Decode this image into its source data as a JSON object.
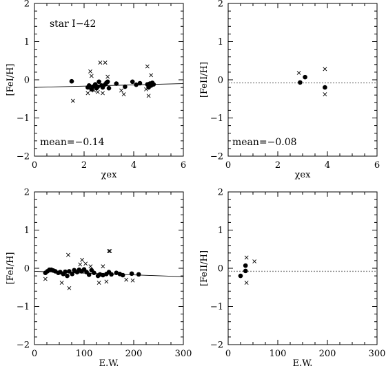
{
  "chart_data": [
    {
      "type": "scatter",
      "panel": "top-left",
      "xlabel": "χex",
      "ylabel": "[FeI/H]",
      "xlim": [
        0,
        6
      ],
      "ylim": [
        -2,
        2
      ],
      "xticks": [
        "0",
        "2",
        "4",
        "6"
      ],
      "yticks": [
        "-2",
        "-1",
        "0",
        "1",
        "2"
      ],
      "annotations": [
        "star I-42",
        "mean=-0.14"
      ],
      "fit_line": {
        "style": "solid",
        "x": [
          0,
          6
        ],
        "y": [
          -0.2,
          -0.1
        ]
      },
      "series": [
        {
          "marker": "filled-circle",
          "points": [
            [
              1.5,
              -0.04
            ],
            [
              2.15,
              -0.2
            ],
            [
              2.2,
              -0.15
            ],
            [
              2.3,
              -0.25
            ],
            [
              2.35,
              -0.18
            ],
            [
              2.45,
              -0.12
            ],
            [
              2.5,
              -0.22
            ],
            [
              2.55,
              -0.18
            ],
            [
              2.6,
              -0.05
            ],
            [
              2.7,
              -0.15
            ],
            [
              2.75,
              -0.2
            ],
            [
              2.85,
              -0.12
            ],
            [
              2.9,
              -0.08
            ],
            [
              2.95,
              -0.05
            ],
            [
              3.0,
              -0.22
            ],
            [
              3.3,
              -0.1
            ],
            [
              3.65,
              -0.18
            ],
            [
              3.95,
              -0.05
            ],
            [
              4.1,
              -0.13
            ],
            [
              4.25,
              -0.09
            ],
            [
              4.55,
              -0.12
            ],
            [
              4.6,
              -0.2
            ],
            [
              4.65,
              -0.1
            ],
            [
              4.7,
              -0.15
            ],
            [
              4.75,
              -0.08
            ],
            [
              4.8,
              -0.12
            ]
          ]
        },
        {
          "marker": "cross",
          "points": [
            [
              1.55,
              -0.55
            ],
            [
              2.15,
              -0.35
            ],
            [
              2.25,
              0.22
            ],
            [
              2.3,
              0.1
            ],
            [
              2.4,
              -0.28
            ],
            [
              2.55,
              -0.32
            ],
            [
              2.65,
              0.45
            ],
            [
              2.75,
              -0.35
            ],
            [
              2.85,
              0.45
            ],
            [
              2.95,
              0.08
            ],
            [
              3.5,
              -0.28
            ],
            [
              3.6,
              -0.38
            ],
            [
              4.5,
              -0.25
            ],
            [
              4.55,
              0.35
            ],
            [
              4.6,
              -0.42
            ],
            [
              4.7,
              0.12
            ]
          ]
        }
      ]
    },
    {
      "type": "scatter",
      "panel": "top-right",
      "xlabel": "χex",
      "ylabel": "[FeII/H]",
      "xlim": [
        0,
        6
      ],
      "ylim": [
        -2,
        2
      ],
      "xticks": [
        "0",
        "2",
        "4",
        "6"
      ],
      "yticks": [
        "-2",
        "-1",
        "0",
        "1",
        "2"
      ],
      "annotations": [
        "mean=-0.08"
      ],
      "fit_line": {
        "style": "dotted",
        "x": [
          0,
          6
        ],
        "y": [
          -0.08,
          -0.08
        ]
      },
      "series": [
        {
          "marker": "filled-circle",
          "points": [
            [
              2.9,
              -0.07
            ],
            [
              3.1,
              0.07
            ],
            [
              3.9,
              -0.2
            ]
          ]
        },
        {
          "marker": "cross",
          "points": [
            [
              2.85,
              0.18
            ],
            [
              3.9,
              0.28
            ],
            [
              3.9,
              -0.38
            ]
          ]
        }
      ]
    },
    {
      "type": "scatter",
      "panel": "bottom-left",
      "xlabel": "E.W.",
      "ylabel": "[FeI/H]",
      "xlim": [
        0,
        300
      ],
      "ylim": [
        -2,
        2
      ],
      "xticks": [
        "0",
        "100",
        "200",
        "300"
      ],
      "yticks": [
        "-2",
        "-1",
        "0",
        "1",
        "2"
      ],
      "annotations": [],
      "fit_line": {
        "style": "solid",
        "x": [
          0,
          300
        ],
        "y": [
          -0.08,
          -0.22
        ]
      },
      "series": [
        {
          "marker": "filled-circle",
          "points": [
            [
              22,
              -0.12
            ],
            [
              26,
              -0.08
            ],
            [
              30,
              -0.04
            ],
            [
              34,
              -0.04
            ],
            [
              38,
              -0.06
            ],
            [
              42,
              -0.08
            ],
            [
              48,
              -0.12
            ],
            [
              52,
              -0.1
            ],
            [
              58,
              -0.15
            ],
            [
              62,
              -0.09
            ],
            [
              66,
              -0.2
            ],
            [
              70,
              -0.08
            ],
            [
              76,
              -0.15
            ],
            [
              80,
              -0.05
            ],
            [
              86,
              -0.1
            ],
            [
              90,
              -0.04
            ],
            [
              95,
              -0.08
            ],
            [
              100,
              -0.03
            ],
            [
              105,
              -0.1
            ],
            [
              110,
              -0.17
            ],
            [
              115,
              -0.05
            ],
            [
              120,
              -0.12
            ],
            [
              128,
              -0.2
            ],
            [
              132,
              -0.16
            ],
            [
              138,
              -0.18
            ],
            [
              145,
              -0.15
            ],
            [
              150,
              -0.1
            ],
            [
              155,
              -0.16
            ],
            [
              165,
              -0.12
            ],
            [
              172,
              -0.15
            ],
            [
              178,
              -0.18
            ],
            [
              196,
              -0.14
            ],
            [
              210,
              -0.16
            ]
          ]
        },
        {
          "marker": "cross",
          "points": [
            [
              22,
              -0.28
            ],
            [
              55,
              -0.38
            ],
            [
              68,
              0.35
            ],
            [
              70,
              -0.52
            ],
            [
              92,
              0.1
            ],
            [
              96,
              0.22
            ],
            [
              103,
              0.12
            ],
            [
              113,
              0.05
            ],
            [
              130,
              -0.38
            ],
            [
              138,
              0.05
            ],
            [
              145,
              -0.35
            ],
            [
              150,
              0.45
            ],
            [
              152,
              0.45
            ],
            [
              185,
              -0.3
            ],
            [
              198,
              -0.32
            ]
          ]
        }
      ]
    },
    {
      "type": "scatter",
      "panel": "bottom-right",
      "xlabel": "E.W.",
      "ylabel": "[FeII/H]",
      "xlim": [
        0,
        300
      ],
      "ylim": [
        -2,
        2
      ],
      "xticks": [
        "0",
        "100",
        "200",
        "300"
      ],
      "yticks": [
        "-2",
        "-1",
        "0",
        "1",
        "2"
      ],
      "annotations": [],
      "fit_line": {
        "style": "dotted",
        "x": [
          0,
          300
        ],
        "y": [
          -0.08,
          -0.08
        ]
      },
      "series": [
        {
          "marker": "filled-circle",
          "points": [
            [
              25,
              -0.2
            ],
            [
              35,
              -0.07
            ],
            [
              35,
              0.07
            ]
          ]
        },
        {
          "marker": "cross",
          "points": [
            [
              37,
              0.28
            ],
            [
              37,
              -0.38
            ],
            [
              53,
              0.18
            ]
          ]
        }
      ]
    }
  ]
}
